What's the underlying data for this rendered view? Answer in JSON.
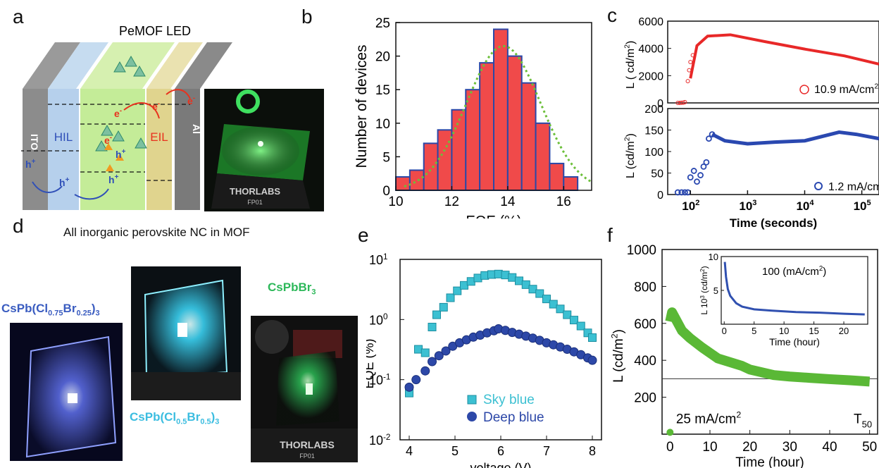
{
  "panel_labels": {
    "a": "a",
    "b": "b",
    "c": "c",
    "d": "d",
    "e": "e",
    "f": "f"
  },
  "panel_a": {
    "title": "PeMOF LED",
    "layers": [
      "ITO",
      "HIL",
      "EIL",
      "Al"
    ],
    "carriers": {
      "electron": "e",
      "hole": "h",
      "minus": "-",
      "plus": "+"
    },
    "photo_text": [
      "THORLABS",
      "FP01"
    ],
    "colors": {
      "electron": "#e8321e",
      "hole": "#3050b8",
      "eml": "#c8f0a0",
      "hil": "#b8d4ee",
      "eil": "#e6dca0"
    }
  },
  "panel_d": {
    "title": "All inorganic perovskite NC in MOF",
    "captions": {
      "c1": {
        "pre": "CsPb(Cl",
        "s1": "0.75",
        "mid": "Br",
        "s2": "0.25",
        "post": ")",
        "s3": "3"
      },
      "c2": {
        "pre": "CsPb(Cl",
        "s1": "0.5",
        "mid": "Br",
        "s2": "0.5",
        "post": ")",
        "s3": "3"
      },
      "c3": {
        "pre": "CsPbBr",
        "s3": "3"
      }
    },
    "photo_text": [
      "THORLABS",
      "FP01"
    ],
    "colors": {
      "c1": "#3a5cc0",
      "c2": "#3bbde0",
      "c3": "#2db85a"
    }
  },
  "chart_data": [
    {
      "id": "b",
      "type": "bar",
      "xlabel": "EQE (%)",
      "ylabel": "Number of devices",
      "xlim": [
        10,
        17
      ],
      "ylim": [
        0,
        25
      ],
      "xticks": [
        "10",
        "12",
        "14",
        "16"
      ],
      "yticks": [
        "0",
        "5",
        "10",
        "15",
        "20",
        "25"
      ],
      "bins": [
        [
          10,
          10.5
        ],
        [
          10.5,
          11
        ],
        [
          11,
          11.5
        ],
        [
          11.5,
          12
        ],
        [
          12,
          12.5
        ],
        [
          12.5,
          13
        ],
        [
          13,
          13.5
        ],
        [
          13.5,
          14
        ],
        [
          14,
          14.5
        ],
        [
          14.5,
          15
        ],
        [
          15,
          15.5
        ],
        [
          15.5,
          16
        ],
        [
          16,
          16.5
        ]
      ],
      "values": [
        2,
        3,
        7,
        9,
        12,
        15,
        19,
        24,
        20,
        16,
        10,
        4,
        2
      ],
      "fit": {
        "type": "gaussian",
        "mean": 13.85,
        "sd": 1.32,
        "peak": 21.5
      },
      "colors": {
        "bar": "#f04a4a",
        "edge": "#2a48a8",
        "fit": "#6cbf3a"
      }
    },
    {
      "id": "c_top",
      "type": "line",
      "ylabel": "L ( cd/m",
      "x_scale": "log",
      "xlim": [
        40,
        200000
      ],
      "ylim": [
        0,
        6000
      ],
      "yticks": [
        "0",
        "2000",
        "4000",
        "6000"
      ],
      "series": [
        {
          "name": "10.9 mA/cm",
          "values": [
            [
              60,
              0
            ],
            [
              70,
              20
            ],
            [
              80,
              80
            ],
            [
              90,
              150
            ],
            [
              100,
              1800
            ],
            [
              130,
              4200
            ],
            [
              200,
              4900
            ],
            [
              500,
              5000
            ],
            [
              2000,
              4500
            ],
            [
              10000,
              3950
            ],
            [
              50000,
              3450
            ],
            [
              200000,
              2850
            ]
          ]
        }
      ],
      "colors": {
        "line": "#e82828"
      }
    },
    {
      "id": "c_bottom",
      "type": "scatter",
      "ylabel": "L (cd/m",
      "xlabel": "Time (seconds)",
      "x_scale": "log",
      "xlim": [
        40,
        200000
      ],
      "ylim": [
        0,
        200
      ],
      "yticks": [
        "0",
        "50",
        "100",
        "150",
        "200"
      ],
      "xticks": [
        "10",
        "10",
        "10",
        "10"
      ],
      "xtick_exp": [
        "2",
        "3",
        "4",
        "5"
      ],
      "series": [
        {
          "name": "1.2 mA/cm",
          "values": [
            [
              60,
              5
            ],
            [
              70,
              5
            ],
            [
              80,
              5
            ],
            [
              90,
              5
            ],
            [
              100,
              40
            ],
            [
              115,
              55
            ],
            [
              130,
              30
            ],
            [
              150,
              45
            ],
            [
              170,
              65
            ],
            [
              190,
              75
            ],
            [
              210,
              130
            ],
            [
              240,
              140
            ],
            [
              400,
              125
            ],
            [
              1000,
              118
            ],
            [
              3000,
              122
            ],
            [
              10000,
              125
            ],
            [
              40000,
              145
            ],
            [
              80000,
              140
            ],
            [
              200000,
              130
            ]
          ]
        }
      ],
      "colors": {
        "line": "#2a48b0"
      }
    },
    {
      "id": "e",
      "type": "scatter",
      "xlabel": "voltage (V)",
      "ylabel": "EQE (%)",
      "xlim": [
        3.8,
        8.2
      ],
      "y_scale": "log",
      "ylim": [
        0.01,
        10
      ],
      "xticks": [
        "4",
        "5",
        "6",
        "7",
        "8"
      ],
      "ytick_base": "10",
      "ytick_exp": [
        "-2",
        "-1",
        "0",
        "1"
      ],
      "series": [
        {
          "name": "Sky blue",
          "marker": "square",
          "values": [
            [
              4.0,
              0.06
            ],
            [
              4.2,
              0.32
            ],
            [
              4.35,
              0.28
            ],
            [
              4.5,
              0.75
            ],
            [
              4.6,
              1.2
            ],
            [
              4.75,
              1.6
            ],
            [
              4.9,
              2.3
            ],
            [
              5.05,
              3.0
            ],
            [
              5.2,
              3.7
            ],
            [
              5.35,
              4.3
            ],
            [
              5.5,
              4.9
            ],
            [
              5.65,
              5.4
            ],
            [
              5.8,
              5.6
            ],
            [
              5.95,
              5.7
            ],
            [
              6.1,
              5.5
            ],
            [
              6.25,
              5.0
            ],
            [
              6.4,
              4.4
            ],
            [
              6.55,
              3.8
            ],
            [
              6.7,
              3.2
            ],
            [
              6.85,
              2.7
            ],
            [
              7.0,
              2.2
            ],
            [
              7.15,
              1.8
            ],
            [
              7.3,
              1.5
            ],
            [
              7.45,
              1.2
            ],
            [
              7.6,
              0.98
            ],
            [
              7.75,
              0.78
            ],
            [
              7.9,
              0.6
            ],
            [
              8.0,
              0.5
            ]
          ]
        },
        {
          "name": "Deep blue",
          "marker": "circle",
          "values": [
            [
              4.0,
              0.075
            ],
            [
              4.15,
              0.1
            ],
            [
              4.35,
              0.14
            ],
            [
              4.5,
              0.2
            ],
            [
              4.65,
              0.25
            ],
            [
              4.8,
              0.3
            ],
            [
              4.95,
              0.36
            ],
            [
              5.1,
              0.41
            ],
            [
              5.25,
              0.46
            ],
            [
              5.4,
              0.51
            ],
            [
              5.55,
              0.55
            ],
            [
              5.7,
              0.6
            ],
            [
              5.85,
              0.65
            ],
            [
              5.95,
              0.7
            ],
            [
              6.1,
              0.66
            ],
            [
              6.25,
              0.61
            ],
            [
              6.4,
              0.57
            ],
            [
              6.55,
              0.53
            ],
            [
              6.7,
              0.49
            ],
            [
              6.85,
              0.45
            ],
            [
              7.0,
              0.41
            ],
            [
              7.15,
              0.38
            ],
            [
              7.3,
              0.35
            ],
            [
              7.45,
              0.32
            ],
            [
              7.6,
              0.29
            ],
            [
              7.75,
              0.26
            ],
            [
              7.9,
              0.23
            ],
            [
              8.0,
              0.21
            ]
          ]
        }
      ],
      "colors": {
        "sky": "#3cc0d2",
        "deep": "#2d48a8"
      }
    },
    {
      "id": "f",
      "type": "line",
      "xlabel": "Time (hour)",
      "ylabel": "L (cd/m",
      "xlim": [
        -2,
        52
      ],
      "ylim": [
        0,
        1000
      ],
      "xticks": [
        "0",
        "10",
        "20",
        "30",
        "40",
        "50"
      ],
      "yticks": [
        "200",
        "400",
        "600",
        "800",
        "1000"
      ],
      "annotation": "25 mA/cm",
      "t50_label": "T",
      "t50_sub": "50",
      "reference_line": 300,
      "series": [
        {
          "name": "25 mA/cm",
          "values": [
            [
              0,
              610
            ],
            [
              0.5,
              660
            ],
            [
              1,
              640
            ],
            [
              2,
              600
            ],
            [
              3,
              560
            ],
            [
              5,
              520
            ],
            [
              8,
              470
            ],
            [
              10,
              440
            ],
            [
              12,
              410
            ],
            [
              15,
              390
            ],
            [
              18,
              370
            ],
            [
              20,
              350
            ],
            [
              24,
              330
            ],
            [
              26,
              320
            ],
            [
              30,
              312
            ],
            [
              35,
              305
            ],
            [
              40,
              298
            ],
            [
              45,
              292
            ],
            [
              50,
              285
            ]
          ]
        }
      ],
      "start_point": [
        0,
        10
      ],
      "colors": {
        "line": "#5ab836"
      }
    },
    {
      "id": "f_inset",
      "type": "line",
      "xlabel": "Time (hour)",
      "ylabel": "L 10",
      "ylabel_exp": "3",
      "ylabel_unit": " (cd/m",
      "annotation": "100 (mA/cm",
      "xlim": [
        -0.5,
        24
      ],
      "ylim": [
        0,
        10
      ],
      "xticks": [
        "0",
        "5",
        "10",
        "15",
        "20"
      ],
      "yticks": [
        "5",
        "10"
      ],
      "series": [
        {
          "name": "100 (mA/cm",
          "values": [
            [
              0.1,
              9.2
            ],
            [
              0.3,
              7
            ],
            [
              0.6,
              5.2
            ],
            [
              1,
              4.2
            ],
            [
              2,
              3.1
            ],
            [
              3,
              2.6
            ],
            [
              5,
              2.2
            ],
            [
              8,
              2.0
            ],
            [
              12,
              1.8
            ],
            [
              16,
              1.7
            ],
            [
              20,
              1.55
            ],
            [
              23.5,
              1.45
            ]
          ]
        }
      ],
      "colors": {
        "line": "#3050b0"
      }
    }
  ]
}
